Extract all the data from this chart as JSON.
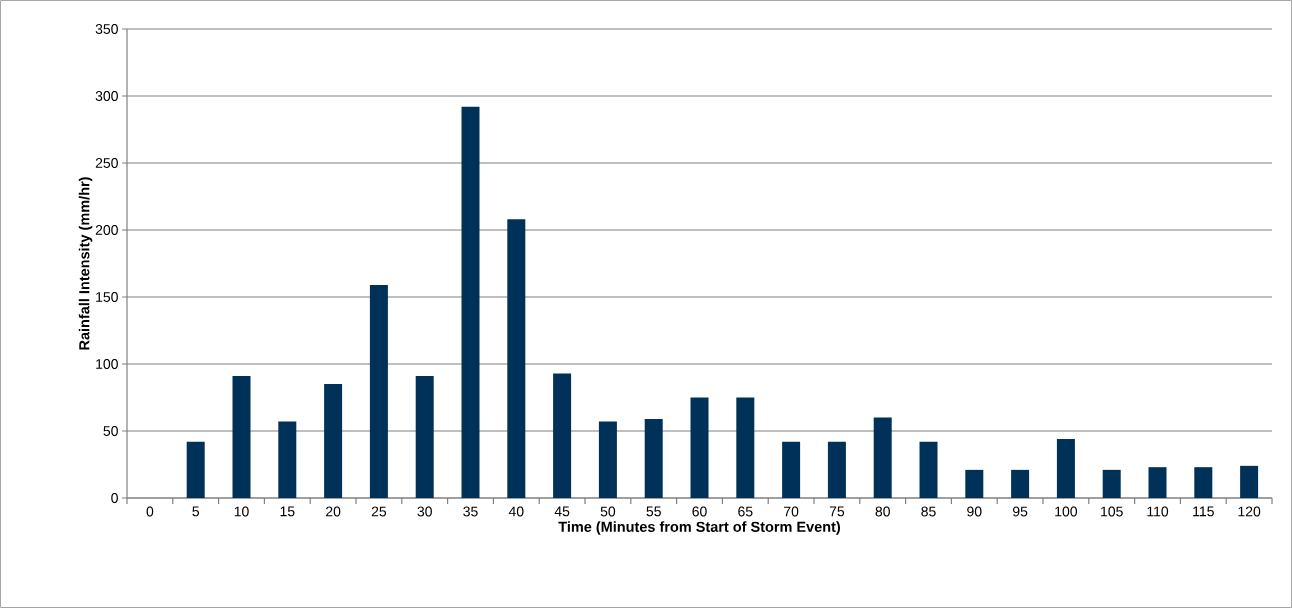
{
  "chart_data": {
    "type": "bar",
    "xlabel": "Time (Minutes from Start of Storm Event)",
    "ylabel": "Rainfall Intensity (mm/hr)",
    "categories": [
      "0",
      "5",
      "10",
      "15",
      "20",
      "25",
      "30",
      "35",
      "40",
      "45",
      "50",
      "55",
      "60",
      "65",
      "70",
      "75",
      "80",
      "85",
      "90",
      "95",
      "100",
      "105",
      "110",
      "115",
      "120"
    ],
    "values": [
      0,
      42,
      91,
      57,
      85,
      159,
      91,
      292,
      208,
      93,
      57,
      59,
      75,
      75,
      42,
      42,
      60,
      42,
      21,
      21,
      44,
      21,
      23,
      23,
      24
    ],
    "color": "#003158",
    "ylim": [
      0,
      350
    ],
    "yticks": [
      0,
      50,
      100,
      150,
      200,
      250,
      300,
      350
    ],
    "grid": "y"
  }
}
